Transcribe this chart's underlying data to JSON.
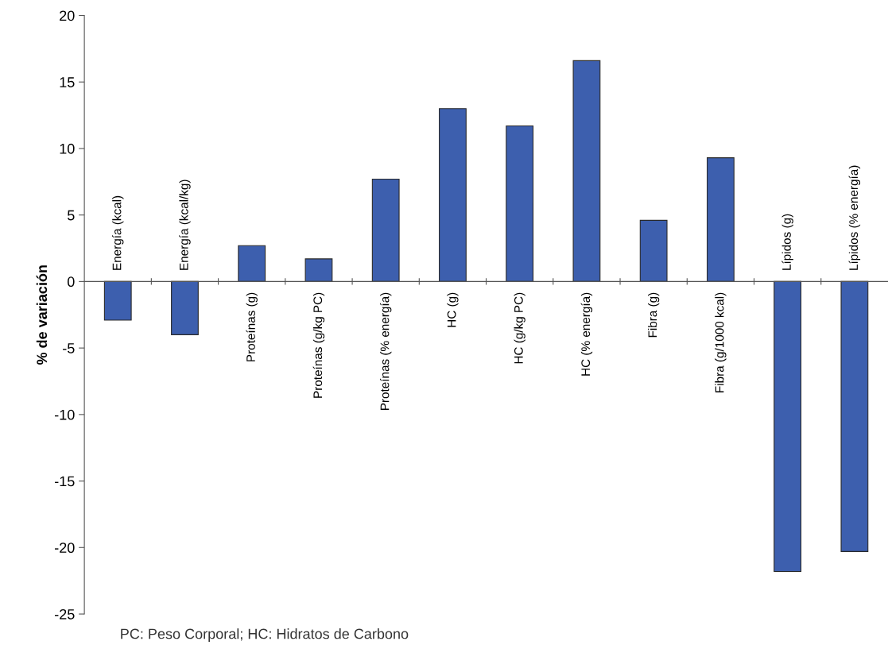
{
  "chart_data": {
    "type": "bar",
    "ylabel": "% de variación",
    "categories": [
      "Energía (kcal)",
      "Energía (kcal/kg)",
      "Proteínas (g)",
      "Proteínas (g/kg PC)",
      "Proteínas (% energía)",
      "HC (g)",
      "HC (g/kg PC)",
      "HC (% energía)",
      "Fibra (g)",
      "Fibra (g/1000 kcal)",
      "Lípidos (g)",
      "Lípidos (% energía)"
    ],
    "values": [
      -2.9,
      -4.0,
      2.7,
      1.7,
      7.7,
      13.0,
      11.7,
      16.6,
      4.6,
      9.3,
      -21.8,
      -20.3
    ],
    "color": "#3d5fae",
    "ylim": [
      -25,
      20
    ],
    "yticks": [
      -25,
      -20,
      -15,
      -10,
      -5,
      0,
      5,
      10,
      15,
      20
    ],
    "grid": false,
    "annotations": [
      "PC: Peso Corporal; HC: Hidratos de Carbono"
    ]
  }
}
